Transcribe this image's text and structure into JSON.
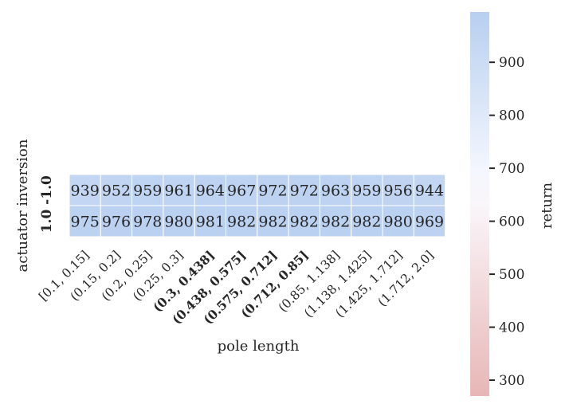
{
  "chart_data": {
    "type": "heatmap",
    "xlabel": "pole length",
    "ylabel": "actuator inversion",
    "x_categories": [
      "[0.1, 0.15]",
      "(0.15, 0.2]",
      "(0.2, 0.25]",
      "(0.25, 0.3]",
      "(0.3, 0.438]",
      "(0.438, 0.575]",
      "(0.575, 0.712]",
      "(0.712, 0.85]",
      "(0.85, 1.138]",
      "(1.138, 1.425]",
      "(1.425, 1.712]",
      "(1.712, 2.0]"
    ],
    "x_bold": [
      false,
      false,
      false,
      false,
      true,
      true,
      true,
      true,
      false,
      false,
      false,
      false
    ],
    "y_categories": [
      "-1.0",
      "1.0"
    ],
    "y_bold": [
      true,
      true
    ],
    "values": [
      [
        939,
        952,
        959,
        961,
        964,
        967,
        972,
        972,
        963,
        959,
        956,
        944
      ],
      [
        975,
        976,
        978,
        980,
        981,
        982,
        982,
        982,
        982,
        982,
        980,
        969
      ]
    ],
    "colorbar": {
      "label": "return",
      "vmin": 270,
      "vmax": 995,
      "ticks": [
        300,
        400,
        500,
        600,
        700,
        800,
        900
      ],
      "center": 660,
      "colors": {
        "low": "#e8b6b6",
        "center": "#fbfbff",
        "high": "#b8cff0"
      }
    }
  }
}
